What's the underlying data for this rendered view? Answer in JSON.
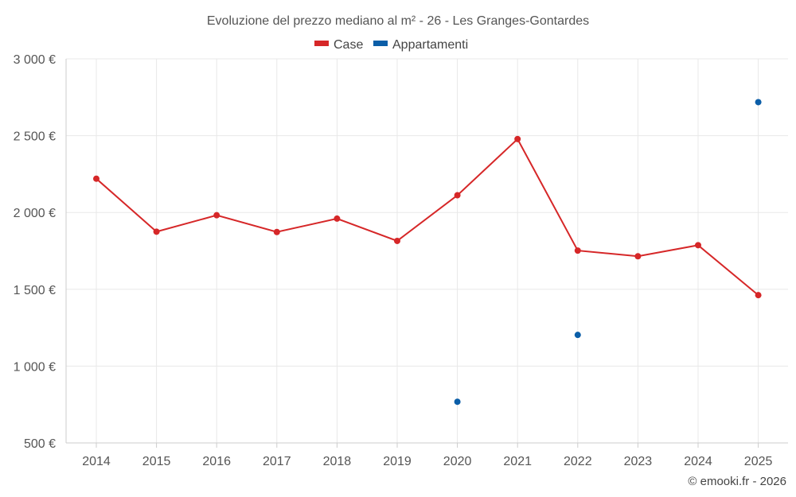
{
  "chart_data": {
    "type": "line",
    "title": "Evoluzione del prezzo mediano al m² - 26 - Les Granges-Gontardes",
    "x": [
      "2014",
      "2015",
      "2016",
      "2017",
      "2018",
      "2019",
      "2020",
      "2021",
      "2022",
      "2023",
      "2024",
      "2025"
    ],
    "y_ticks": [
      500,
      1000,
      1500,
      2000,
      2500,
      3000
    ],
    "y_tick_labels": [
      "500 €",
      "1 000 €",
      "1 500 €",
      "2 000 €",
      "2 500 €",
      "3 000 €"
    ],
    "ylim": [
      500,
      3000
    ],
    "grid": true,
    "legend_position": "top-center",
    "series": [
      {
        "name": "Case",
        "color": "#d62728",
        "values": [
          2220,
          1875,
          1982,
          1873,
          1960,
          1815,
          2112,
          2478,
          1752,
          1715,
          1787,
          1462
        ]
      },
      {
        "name": "Appartamenti",
        "color": "#0b5ea8",
        "values": [
          null,
          null,
          null,
          null,
          null,
          null,
          768,
          null,
          1203,
          null,
          null,
          2718
        ]
      }
    ]
  },
  "credit": "© emooki.fr - 2026"
}
